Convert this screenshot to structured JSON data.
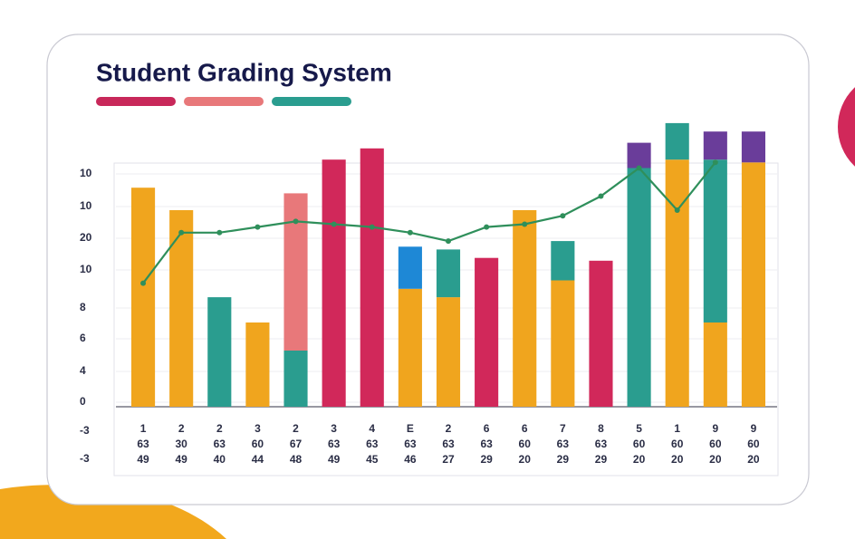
{
  "chart_data": {
    "type": "bar",
    "title": "Student Grading System",
    "legend_colors": [
      "#c8285a",
      "#e8787a",
      "#2a9d8f"
    ],
    "categories": [
      "1",
      "2",
      "2",
      "3",
      "2",
      "3",
      "4",
      "E",
      "2",
      "6",
      "6",
      "7",
      "8",
      "5",
      "1",
      "9",
      "9"
    ],
    "category_sublabels": [
      [
        "63",
        "30",
        "63",
        "60",
        "67",
        "63",
        "63",
        "63",
        "63",
        "63",
        "60",
        "63",
        "63",
        "60",
        "60",
        "60",
        "60"
      ],
      [
        "49",
        "49",
        "40",
        "44",
        "48",
        "49",
        "45",
        "46",
        "27",
        "29",
        "20",
        "29",
        "29",
        "20",
        "20",
        "20",
        "20"
      ]
    ],
    "y_axis_labels": [
      "10",
      "10",
      "20",
      "10",
      "8",
      "6",
      "4",
      "0",
      "-3",
      "-3"
    ],
    "ylim": [
      0,
      100
    ],
    "grid": true,
    "series": [
      {
        "color": "#f0a51e",
        "values": [
          78,
          70,
          null,
          30,
          null,
          null,
          null,
          42,
          39,
          null,
          70,
          45,
          null,
          null,
          88,
          30,
          87
        ]
      },
      {
        "color": "#2a9d8f",
        "values": [
          null,
          null,
          39,
          null,
          20,
          null,
          null,
          null,
          17,
          null,
          null,
          14,
          null,
          85,
          13,
          58,
          null
        ]
      },
      {
        "color": "#d1285a",
        "values": [
          null,
          null,
          null,
          null,
          null,
          88,
          92,
          null,
          null,
          53,
          null,
          null,
          52,
          null,
          null,
          null,
          null
        ]
      },
      {
        "color": "#e8787a",
        "values": [
          null,
          null,
          null,
          null,
          56,
          null,
          null,
          null,
          null,
          null,
          null,
          null,
          null,
          null,
          null,
          null,
          null
        ]
      },
      {
        "color": "#1e88d6",
        "values": [
          null,
          null,
          null,
          null,
          null,
          null,
          null,
          15,
          null,
          null,
          null,
          null,
          null,
          null,
          null,
          null,
          null
        ]
      },
      {
        "color": "#6a3d9a",
        "values": [
          null,
          null,
          null,
          null,
          null,
          null,
          null,
          null,
          null,
          null,
          null,
          null,
          null,
          9,
          null,
          10,
          11
        ]
      }
    ],
    "line": {
      "type": "line",
      "color": "#2f8f5b",
      "values": [
        44,
        62,
        62,
        64,
        66,
        65,
        64,
        62,
        59,
        64,
        65,
        68,
        75,
        85,
        70,
        87,
        null
      ]
    }
  }
}
